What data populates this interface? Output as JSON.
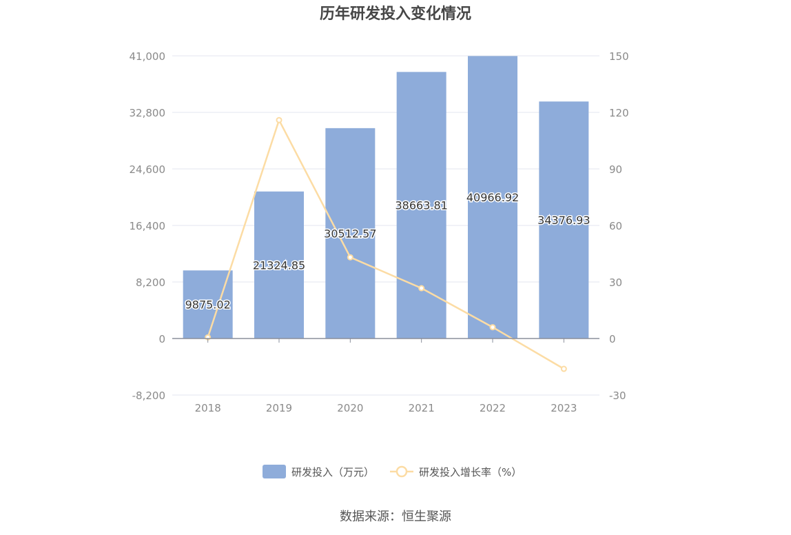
{
  "chart_data": {
    "type": "bar",
    "title": "历年研发投入变化情况",
    "categories": [
      "2018",
      "2019",
      "2020",
      "2021",
      "2022",
      "2023"
    ],
    "series": [
      {
        "name": "研发投入（万元）",
        "type": "bar",
        "axis": "left",
        "values": [
          9875.02,
          21324.85,
          30512.57,
          38663.81,
          40966.92,
          34376.93
        ],
        "labels": [
          "9875.02",
          "21324.85",
          "30512.57",
          "38663.81",
          "40966.92",
          "34376.93"
        ]
      },
      {
        "name": "研发投入增长率（%）",
        "type": "line",
        "axis": "right",
        "values": [
          0.6,
          115.9,
          43.1,
          26.7,
          6.0,
          -16.1
        ]
      }
    ],
    "y_left": {
      "min": -8200,
      "max": 41000,
      "ticks": [
        41000,
        32800,
        24600,
        16400,
        8200,
        0,
        -8200
      ],
      "tick_labels": [
        "41,000",
        "32,800",
        "24,600",
        "16,400",
        "8,200",
        "0",
        "-8,200"
      ]
    },
    "y_right": {
      "min": -30,
      "max": 150,
      "ticks": [
        150,
        120,
        90,
        60,
        30,
        0,
        -30
      ],
      "tick_labels": [
        "150",
        "120",
        "90",
        "60",
        "30",
        "0",
        "-30"
      ]
    },
    "grid": true,
    "legend_position": "bottom",
    "colors": {
      "bar": "#8eacda",
      "line": "#fcdca4",
      "axis_text": "#8a8a8a",
      "grid": "#e3e6ef",
      "baseline": "#8a8f9c"
    }
  },
  "source": "数据来源：恒生聚源"
}
